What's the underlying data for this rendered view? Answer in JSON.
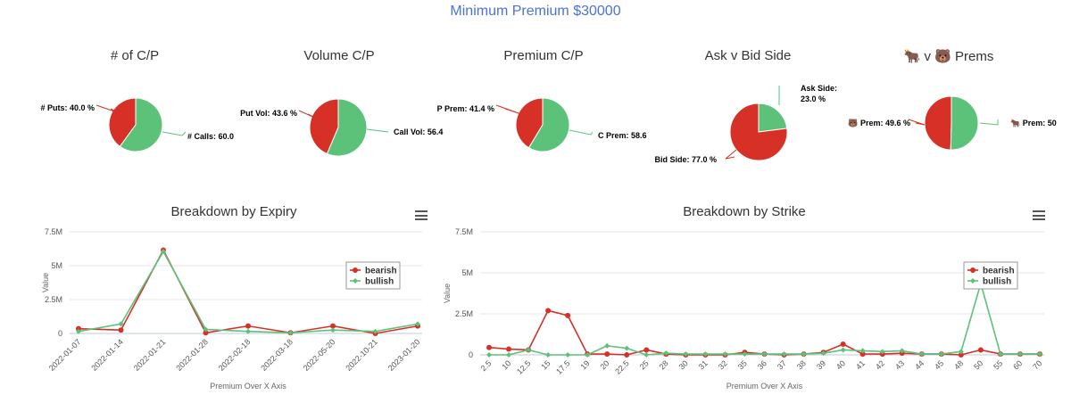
{
  "header": {
    "title": "Minimum Premium $30000"
  },
  "colors": {
    "bearish": "#d63027",
    "bullish": "#5cc27a",
    "title": "#4a72d8"
  },
  "pies": [
    {
      "title": "# of C/P",
      "slices": [
        {
          "label": "# Puts: 40.0 %",
          "value": 40.0,
          "color": "#d63027"
        },
        {
          "label": "# Calls: 60.0",
          "value": 60.0,
          "color": "#5cc27a"
        }
      ]
    },
    {
      "title": "Volume C/P",
      "slices": [
        {
          "label": "Put Vol: 43.6 %",
          "value": 43.6,
          "color": "#d63027"
        },
        {
          "label": "Call Vol: 56.4",
          "value": 56.4,
          "color": "#5cc27a"
        }
      ]
    },
    {
      "title": "Premium C/P",
      "slices": [
        {
          "label": "P Prem: 41.4 %",
          "value": 41.4,
          "color": "#d63027"
        },
        {
          "label": "C Prem: 58.6",
          "value": 58.6,
          "color": "#5cc27a"
        }
      ]
    },
    {
      "title": "Ask v Bid Side",
      "slices": [
        {
          "label": "Ask Side:",
          "label2": "23.0 %",
          "value": 23.0,
          "color": "#5cc27a"
        },
        {
          "label": "Bid Side: 77.0 %",
          "value": 77.0,
          "color": "#d63027"
        }
      ]
    },
    {
      "title": "🐂 v 🐻 Prems",
      "slices": [
        {
          "label": "🐻 Prem: 49.6 %",
          "value": 49.6,
          "color": "#d63027"
        },
        {
          "label": "🐂 Prem: 50",
          "value": 50.4,
          "color": "#5cc27a"
        }
      ]
    }
  ],
  "chart_data": [
    {
      "type": "line",
      "title": "Breakdown by Expiry",
      "xlabel": "Premium Over X Axis",
      "ylabel": "Value",
      "ylim": [
        0,
        7500000
      ],
      "yticks": [
        "0",
        "2.5M",
        "5M",
        "7.5M"
      ],
      "legend": "right",
      "categories": [
        "2022-01-07",
        "2022-01-14",
        "2022-01-21",
        "2022-01-28",
        "2022-02-18",
        "2022-03-18",
        "2022-05-20",
        "2022-10-21",
        "2023-01-20"
      ],
      "series": [
        {
          "name": "bearish",
          "values": [
            350000,
            250000,
            6150000,
            50000,
            550000,
            50000,
            550000,
            0,
            550000
          ]
        },
        {
          "name": "bullish",
          "values": [
            150000,
            700000,
            6050000,
            300000,
            150000,
            50000,
            250000,
            150000,
            700000
          ]
        }
      ]
    },
    {
      "type": "line",
      "title": "Breakdown by Strike",
      "xlabel": "Premium Over X Axis",
      "ylabel": "Value",
      "ylim": [
        0,
        7500000
      ],
      "yticks": [
        "0",
        "2.5M",
        "5M",
        "7.5M"
      ],
      "legend": "right",
      "categories": [
        "2.5",
        "10",
        "12.5",
        "15",
        "17.5",
        "19",
        "20",
        "22.5",
        "25",
        "28",
        "30",
        "31",
        "32",
        "35",
        "36",
        "37",
        "38",
        "39",
        "40",
        "41",
        "42",
        "43",
        "44",
        "45",
        "48",
        "50",
        "55",
        "60",
        "70"
      ],
      "series": [
        {
          "name": "bearish",
          "values": [
            450000,
            350000,
            300000,
            2700000,
            2400000,
            50000,
            50000,
            0,
            300000,
            50000,
            0,
            0,
            0,
            150000,
            50000,
            0,
            50000,
            150000,
            650000,
            50000,
            50000,
            100000,
            50000,
            50000,
            0,
            300000,
            50000,
            50000,
            50000
          ]
        },
        {
          "name": "bullish",
          "values": [
            0,
            0,
            300000,
            0,
            0,
            0,
            550000,
            400000,
            0,
            100000,
            50000,
            50000,
            50000,
            50000,
            50000,
            50000,
            50000,
            100000,
            300000,
            250000,
            200000,
            250000,
            50000,
            50000,
            200000,
            4350000,
            50000,
            50000,
            50000
          ]
        }
      ]
    }
  ]
}
